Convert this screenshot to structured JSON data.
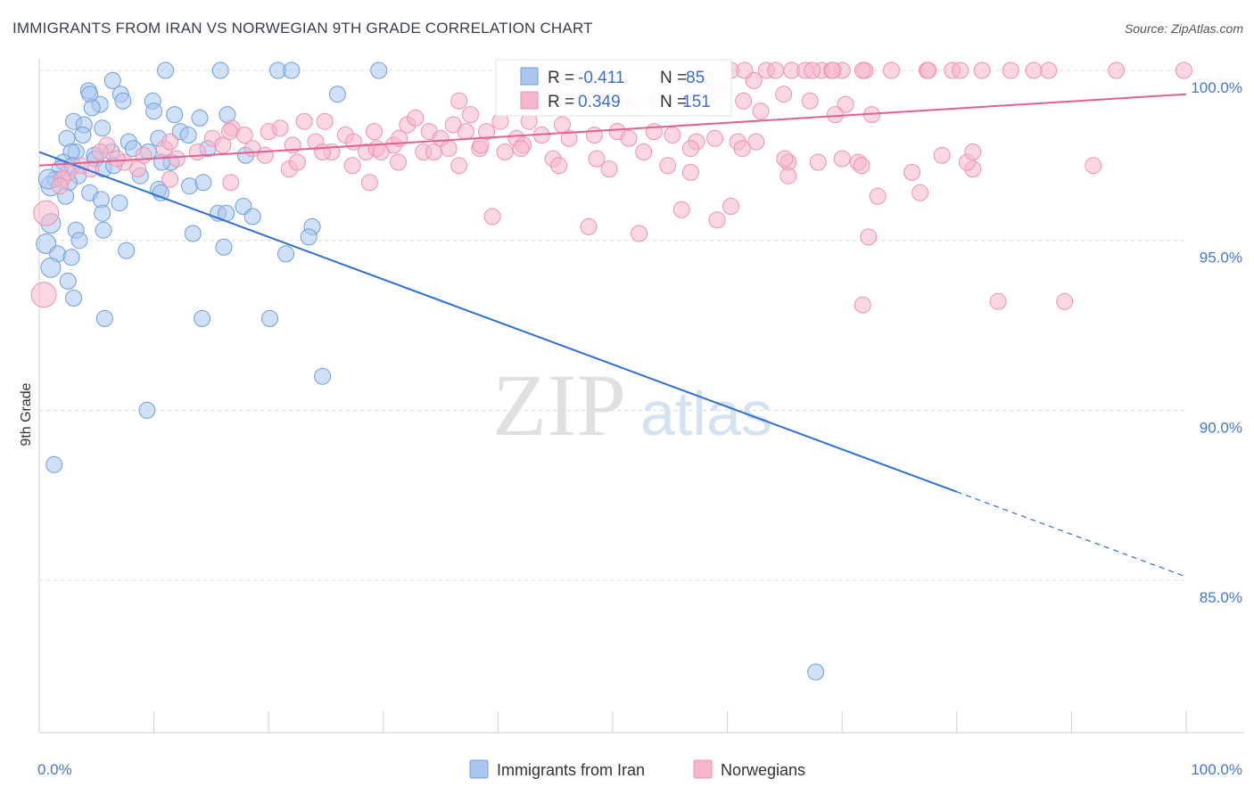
{
  "header": {
    "title": "IMMIGRANTS FROM IRAN VS NORWEGIAN 9TH GRADE CORRELATION CHART",
    "source": "Source: ZipAtlas.com"
  },
  "watermark": {
    "zip": "ZIP",
    "atlas": "atlas"
  },
  "stats_box": {
    "rows": [
      {
        "r_label": "R = ",
        "r_value": "-0.411",
        "n_label": "N = ",
        "n_value": "85",
        "color": "#aac6ee"
      },
      {
        "r_label": "R = ",
        "r_value": "0.349",
        "n_label": "N = ",
        "n_value": "151",
        "color": "#f6b6ca"
      }
    ]
  },
  "legend": {
    "items": [
      {
        "label": "Immigrants from Iran",
        "color": "#aac6ee"
      },
      {
        "label": "Norwegians",
        "color": "#f6b6ca"
      }
    ]
  },
  "colors": {
    "blue_stroke": "#6d9ee0",
    "blue_fill": "#aac6ee",
    "blue_line": "#2f6fd6",
    "pink_stroke": "#ee92b0",
    "pink_fill": "#f6b6ca",
    "pink_line": "#e3608f"
  },
  "chart_data": {
    "type": "scatter",
    "title": "IMMIGRANTS FROM IRAN VS NORWEGIAN 9TH GRADE CORRELATION CHART",
    "xlabel": "",
    "ylabel": "9th Grade",
    "xlim": [
      0,
      100
    ],
    "ylim": [
      80.5,
      100.4
    ],
    "x_tick_labels": [
      "0.0%",
      "100.0%"
    ],
    "y_ticks": [
      85,
      90,
      95,
      100
    ],
    "y_tick_labels": [
      "85.0%",
      "90.0%",
      "95.0%",
      "100.0%"
    ],
    "grid": "horizontal dashed",
    "legend_position": "bottom-center",
    "series": [
      {
        "name": "Immigrants from Iran",
        "r": -0.411,
        "n": 85,
        "trend": {
          "x": [
            0,
            80
          ],
          "y": [
            97.6,
            87.6
          ],
          "dashed_extension_to": [
            100,
            85.1
          ]
        },
        "points": [
          [
            4.3,
            99.4
          ],
          [
            5.3,
            99.0
          ],
          [
            6.4,
            99.7
          ],
          [
            7.1,
            99.3
          ],
          [
            7.3,
            99.1
          ],
          [
            4.4,
            99.3
          ],
          [
            9.9,
            99.1
          ],
          [
            10.0,
            98.8
          ],
          [
            11.0,
            100.0
          ],
          [
            11.8,
            98.7
          ],
          [
            12.3,
            98.2
          ],
          [
            13.0,
            98.1
          ],
          [
            14.0,
            98.6
          ],
          [
            15.8,
            100.0
          ],
          [
            16.4,
            98.7
          ],
          [
            20.8,
            100.0
          ],
          [
            22.0,
            100.0
          ],
          [
            26.0,
            99.3
          ],
          [
            29.6,
            100.0
          ],
          [
            3.0,
            98.5
          ],
          [
            3.9,
            98.4
          ],
          [
            2.4,
            98.0
          ],
          [
            3.8,
            98.1
          ],
          [
            4.6,
            98.9
          ],
          [
            5.5,
            98.3
          ],
          [
            7.8,
            97.9
          ],
          [
            8.2,
            97.7
          ],
          [
            4.8,
            97.5
          ],
          [
            4.9,
            97.4
          ],
          [
            6.3,
            97.6
          ],
          [
            5.6,
            97.1
          ],
          [
            6.5,
            97.2
          ],
          [
            3.2,
            97.6
          ],
          [
            2.8,
            97.6
          ],
          [
            2.1,
            97.3
          ],
          [
            1.8,
            97.1
          ],
          [
            1.4,
            96.8
          ],
          [
            1.0,
            96.6
          ],
          [
            0.8,
            96.8
          ],
          [
            2.9,
            97.2
          ],
          [
            3.4,
            96.9
          ],
          [
            2.6,
            96.7
          ],
          [
            2.3,
            96.3
          ],
          [
            4.4,
            96.4
          ],
          [
            5.4,
            96.2
          ],
          [
            7.0,
            96.1
          ],
          [
            9.5,
            97.6
          ],
          [
            8.8,
            96.9
          ],
          [
            10.4,
            96.5
          ],
          [
            11.5,
            97.3
          ],
          [
            10.6,
            96.4
          ],
          [
            10.7,
            97.3
          ],
          [
            13.1,
            96.6
          ],
          [
            14.3,
            96.7
          ],
          [
            10.4,
            98.0
          ],
          [
            15.6,
            95.8
          ],
          [
            16.3,
            95.8
          ],
          [
            14.7,
            97.7
          ],
          [
            17.8,
            96.0
          ],
          [
            1.0,
            95.5
          ],
          [
            0.6,
            94.9
          ],
          [
            1.6,
            94.6
          ],
          [
            2.8,
            94.5
          ],
          [
            3.2,
            95.3
          ],
          [
            3.5,
            95.0
          ],
          [
            5.5,
            95.8
          ],
          [
            5.6,
            95.3
          ],
          [
            1.0,
            94.2
          ],
          [
            2.5,
            93.8
          ],
          [
            3.0,
            93.3
          ],
          [
            7.6,
            94.7
          ],
          [
            13.4,
            95.2
          ],
          [
            16.1,
            94.8
          ],
          [
            18.0,
            97.5
          ],
          [
            21.5,
            94.6
          ],
          [
            23.8,
            95.4
          ],
          [
            23.5,
            95.1
          ],
          [
            5.7,
            92.7
          ],
          [
            14.2,
            92.7
          ],
          [
            20.1,
            92.7
          ],
          [
            24.7,
            91.0
          ],
          [
            9.4,
            90.0
          ],
          [
            1.3,
            88.4
          ],
          [
            67.7,
            82.3
          ],
          [
            18.6,
            95.7
          ]
        ]
      },
      {
        "name": "Norwegians",
        "r": 0.349,
        "n": 151,
        "trend": {
          "x": [
            0,
            100
          ],
          "y": [
            97.2,
            99.3
          ]
        },
        "points": [
          [
            56.4,
            99.7
          ],
          [
            60.3,
            100.0
          ],
          [
            63.4,
            100.0
          ],
          [
            65.6,
            100.0
          ],
          [
            68.2,
            100.0
          ],
          [
            70.0,
            100.0
          ],
          [
            72.0,
            100.0
          ],
          [
            74.3,
            100.0
          ],
          [
            77.4,
            100.0
          ],
          [
            77.5,
            100.0
          ],
          [
            82.2,
            100.0
          ],
          [
            84.7,
            100.0
          ],
          [
            88.0,
            100.0
          ],
          [
            93.9,
            100.0
          ],
          [
            99.8,
            100.0
          ],
          [
            62.3,
            99.7
          ],
          [
            61.5,
            100.0
          ],
          [
            64.2,
            100.0
          ],
          [
            66.8,
            100.0
          ],
          [
            67.4,
            100.0
          ],
          [
            69.1,
            100.0
          ],
          [
            69.2,
            100.0
          ],
          [
            71.8,
            100.0
          ],
          [
            79.6,
            100.0
          ],
          [
            80.3,
            100.0
          ],
          [
            86.7,
            100.0
          ],
          [
            43.9,
            99.6
          ],
          [
            44.8,
            99.4
          ],
          [
            47.3,
            99.7
          ],
          [
            48.5,
            99.3
          ],
          [
            58.4,
            99.3
          ],
          [
            51.7,
            98.9
          ],
          [
            53.9,
            99.1
          ],
          [
            55.1,
            99.0
          ],
          [
            59.3,
            99.4
          ],
          [
            61.4,
            99.1
          ],
          [
            64.9,
            99.3
          ],
          [
            67.2,
            99.1
          ],
          [
            70.3,
            99.0
          ],
          [
            72.6,
            98.7
          ],
          [
            62.9,
            98.8
          ],
          [
            36.1,
            98.4
          ],
          [
            36.6,
            99.1
          ],
          [
            37.6,
            98.7
          ],
          [
            40.2,
            98.5
          ],
          [
            42.7,
            98.5
          ],
          [
            44.2,
            98.9
          ],
          [
            45.6,
            98.4
          ],
          [
            50.4,
            98.2
          ],
          [
            32.1,
            98.4
          ],
          [
            32.8,
            98.6
          ],
          [
            34.0,
            98.2
          ],
          [
            35.0,
            98.0
          ],
          [
            37.2,
            98.2
          ],
          [
            39.0,
            98.2
          ],
          [
            41.6,
            98.0
          ],
          [
            42.2,
            97.8
          ],
          [
            43.8,
            98.1
          ],
          [
            46.2,
            98.0
          ],
          [
            48.4,
            98.1
          ],
          [
            51.4,
            98.0
          ],
          [
            53.6,
            98.2
          ],
          [
            55.2,
            98.1
          ],
          [
            57.3,
            97.9
          ],
          [
            58.9,
            98.0
          ],
          [
            60.9,
            97.9
          ],
          [
            62.5,
            97.9
          ],
          [
            29.2,
            98.2
          ],
          [
            30.9,
            97.8
          ],
          [
            31.4,
            98.0
          ],
          [
            33.5,
            97.6
          ],
          [
            35.7,
            97.7
          ],
          [
            38.4,
            97.7
          ],
          [
            40.6,
            97.6
          ],
          [
            24.9,
            98.5
          ],
          [
            26.7,
            98.1
          ],
          [
            27.4,
            97.9
          ],
          [
            28.5,
            97.6
          ],
          [
            29.4,
            97.7
          ],
          [
            23.1,
            98.5
          ],
          [
            24.1,
            97.9
          ],
          [
            25.5,
            97.6
          ],
          [
            20.0,
            98.2
          ],
          [
            21.0,
            98.3
          ],
          [
            22.1,
            97.8
          ],
          [
            16.8,
            98.3
          ],
          [
            17.9,
            98.1
          ],
          [
            18.6,
            97.7
          ],
          [
            19.7,
            97.5
          ],
          [
            15.1,
            98.0
          ],
          [
            16.0,
            97.8
          ],
          [
            16.6,
            98.2
          ],
          [
            13.8,
            97.6
          ],
          [
            12.0,
            97.4
          ],
          [
            10.9,
            97.7
          ],
          [
            9.1,
            97.5
          ],
          [
            8.6,
            97.1
          ],
          [
            7.4,
            97.3
          ],
          [
            6.8,
            97.4
          ],
          [
            5.9,
            97.8
          ],
          [
            5.3,
            97.6
          ],
          [
            4.5,
            97.1
          ],
          [
            3.6,
            97.2
          ],
          [
            2.5,
            97.0
          ],
          [
            2.0,
            96.8
          ],
          [
            1.8,
            96.6
          ],
          [
            0.6,
            95.8
          ],
          [
            0.4,
            93.4
          ],
          [
            11.4,
            97.9
          ],
          [
            24.7,
            97.6
          ],
          [
            29.8,
            97.6
          ],
          [
            34.4,
            97.6
          ],
          [
            38.5,
            97.8
          ],
          [
            42.0,
            97.7
          ],
          [
            44.8,
            97.4
          ],
          [
            48.6,
            97.4
          ],
          [
            52.7,
            97.6
          ],
          [
            56.8,
            97.7
          ],
          [
            61.3,
            97.7
          ],
          [
            65.3,
            97.3
          ],
          [
            67.9,
            97.3
          ],
          [
            71.4,
            97.3
          ],
          [
            21.8,
            97.1
          ],
          [
            16.7,
            96.7
          ],
          [
            11.4,
            96.8
          ],
          [
            28.8,
            96.7
          ],
          [
            27.3,
            97.2
          ],
          [
            22.5,
            97.3
          ],
          [
            31.3,
            97.3
          ],
          [
            36.6,
            97.2
          ],
          [
            45.3,
            97.2
          ],
          [
            49.7,
            97.1
          ],
          [
            54.8,
            97.2
          ],
          [
            56.8,
            97.0
          ],
          [
            65.0,
            97.4
          ],
          [
            65.3,
            96.9
          ],
          [
            70.0,
            97.4
          ],
          [
            71.7,
            97.2
          ],
          [
            81.4,
            97.1
          ],
          [
            76.1,
            97.0
          ],
          [
            78.7,
            97.5
          ],
          [
            80.9,
            97.3
          ],
          [
            76.8,
            96.4
          ],
          [
            39.5,
            95.7
          ],
          [
            52.3,
            95.2
          ],
          [
            56.0,
            95.9
          ],
          [
            59.1,
            95.6
          ],
          [
            60.3,
            96.0
          ],
          [
            73.1,
            96.3
          ],
          [
            81.4,
            97.6
          ],
          [
            91.9,
            97.2
          ],
          [
            72.3,
            95.1
          ],
          [
            47.9,
            95.4
          ],
          [
            71.8,
            93.1
          ],
          [
            83.6,
            93.2
          ],
          [
            89.4,
            93.2
          ],
          [
            69.4,
            98.7
          ]
        ]
      }
    ]
  }
}
